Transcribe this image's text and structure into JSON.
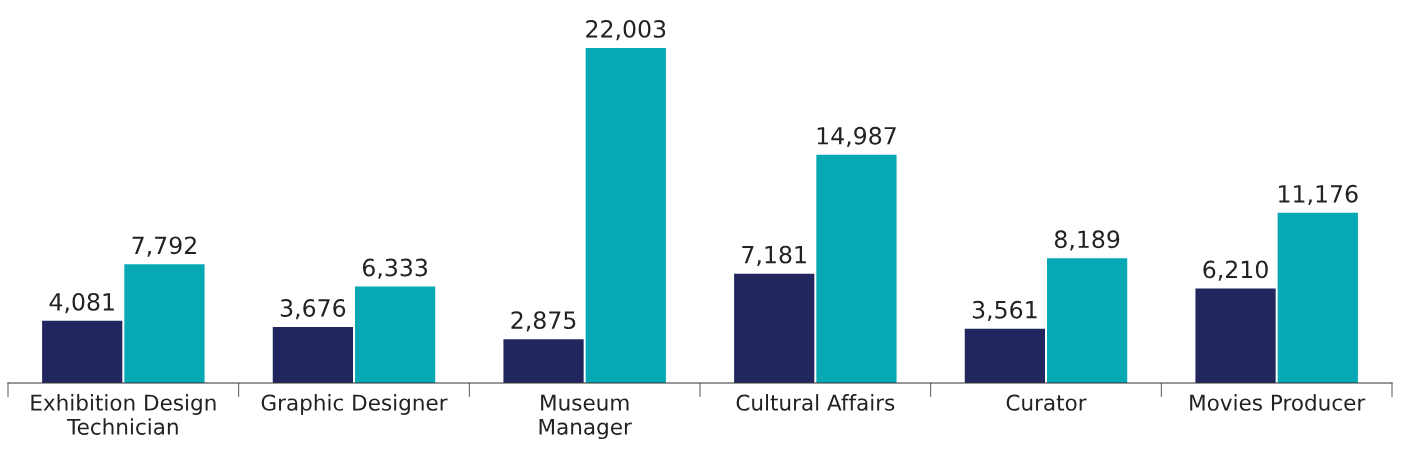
{
  "chart_data": {
    "type": "bar",
    "categories": [
      "Exhibition Design\nTechnician",
      "Graphic Designer",
      "Museum\nManager",
      "Cultural Affairs",
      "Curator",
      "Movies Producer"
    ],
    "series": [
      {
        "color": "#22265e",
        "values": [
          4081,
          3676,
          2875,
          7181,
          3561,
          6210
        ],
        "value_labels": [
          "4,081",
          "3,676",
          "2,875",
          "7,181",
          "3,561",
          "6,210"
        ]
      },
      {
        "color": "#05a8b3",
        "values": [
          7792,
          6333,
          22003,
          14987,
          8189,
          11176
        ],
        "value_labels": [
          "7,792",
          "6,333",
          "22,003",
          "14,987",
          "8,189",
          "11,176"
        ]
      }
    ],
    "grid": false,
    "legend": false
  }
}
